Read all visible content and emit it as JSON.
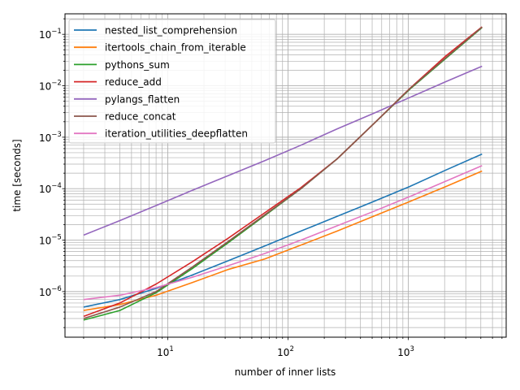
{
  "chart_data": {
    "type": "line",
    "title": "",
    "xlabel": "number of inner lists",
    "ylabel": "time [seconds]",
    "xscale": "log",
    "yscale": "log",
    "xlim": [
      1.4,
      6500
    ],
    "ylim": [
      1.3e-07,
      0.25
    ],
    "grid": "major-and-minor",
    "legend_position": "upper-left",
    "x_ticks": [
      {
        "value": 10,
        "base": "10",
        "exp": "1"
      },
      {
        "value": 100,
        "base": "10",
        "exp": "2"
      },
      {
        "value": 1000,
        "base": "10",
        "exp": "3"
      }
    ],
    "y_ticks": [
      {
        "value": 1e-06,
        "base": "10",
        "exp": "−6"
      },
      {
        "value": 1e-05,
        "base": "10",
        "exp": "−5"
      },
      {
        "value": 0.0001,
        "base": "10",
        "exp": "−4"
      },
      {
        "value": 0.001,
        "base": "10",
        "exp": "−3"
      },
      {
        "value": 0.01,
        "base": "10",
        "exp": "−2"
      },
      {
        "value": 0.1,
        "base": "10",
        "exp": "−1"
      }
    ],
    "x": [
      2,
      4,
      8,
      16,
      32,
      64,
      128,
      256,
      512,
      1024,
      2048,
      4096
    ],
    "series": [
      {
        "name": "nested_list_comprehension",
        "color": "#1f77b4",
        "values": [
          5e-07,
          7e-07,
          1.15e-06,
          2.1e-06,
          4e-06,
          7.7e-06,
          1.5e-05,
          2.9e-05,
          5.6e-05,
          0.00011,
          0.00023,
          0.00047
        ]
      },
      {
        "name": "itertools_chain_from_iterable",
        "color": "#ff7f0e",
        "values": [
          4.3e-07,
          5.6e-07,
          8.5e-07,
          1.5e-06,
          2.7e-06,
          4.3e-06,
          8e-06,
          1.5e-05,
          2.9e-05,
          5.6e-05,
          0.00011,
          0.00022
        ]
      },
      {
        "name": "pythons_sum",
        "color": "#2ca02c",
        "values": [
          2.8e-07,
          4.3e-07,
          9.5e-07,
          2.8e-06,
          9e-06,
          3e-05,
          0.0001,
          0.00038,
          0.0018,
          0.0085,
          0.034,
          0.135
        ]
      },
      {
        "name": "reduce_add",
        "color": "#d62728",
        "values": [
          3.3e-07,
          6e-07,
          1.4e-06,
          3.8e-06,
          1.1e-05,
          3.4e-05,
          0.000105,
          0.00038,
          0.0018,
          0.0088,
          0.038,
          0.14
        ]
      },
      {
        "name": "pylangs_flatten",
        "color": "#9467bd",
        "values": [
          1.25e-05,
          2.4e-05,
          4.7e-05,
          9.3e-05,
          0.00018,
          0.00035,
          0.0007,
          0.00145,
          0.0029,
          0.0059,
          0.012,
          0.024
        ]
      },
      {
        "name": "reduce_concat",
        "color": "#8c564b",
        "values": [
          3e-07,
          5e-07,
          1e-06,
          3e-06,
          9.5e-06,
          3.1e-05,
          0.0001,
          0.00038,
          0.0018,
          0.0087,
          0.035,
          0.138
        ]
      },
      {
        "name": "iteration_utilities_deepflatten",
        "color": "#e377c2",
        "values": [
          7e-07,
          8.5e-07,
          1.2e-06,
          1.9e-06,
          3.2e-06,
          5.5e-06,
          1e-05,
          1.9e-05,
          3.6e-05,
          7e-05,
          0.00014,
          0.00028
        ]
      }
    ]
  }
}
